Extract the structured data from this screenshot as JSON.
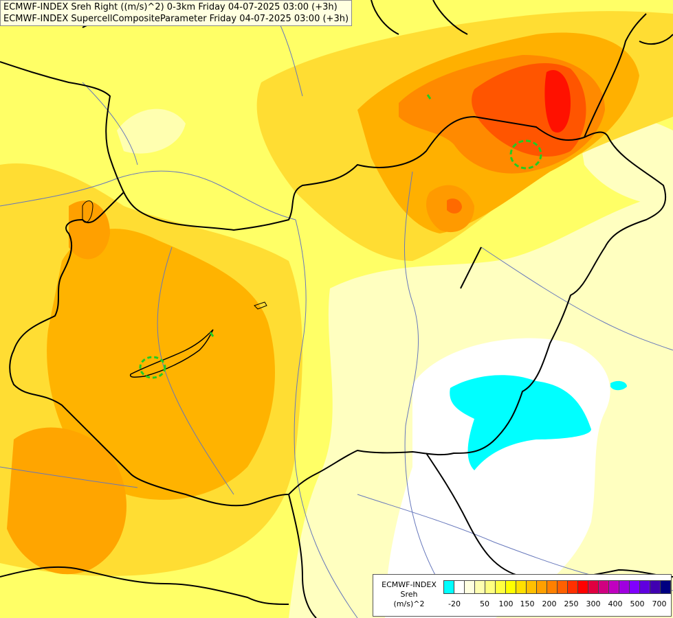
{
  "titles": [
    "ECMWF-INDEX Sreh Right ((m/s)^2) 0-3km Friday 04-07-2025 03:00 (+3h)",
    "ECMWF-INDEX SupercellCompositeParameter Friday 04-07-2025 03:00 (+3h)"
  ],
  "legend": {
    "line1": "ECMWF-INDEX",
    "line2": "Sreh",
    "line3": "(m/s)^2",
    "colors": [
      "#00ffff",
      "#ffffff",
      "#ffffe0",
      "#ffffb0",
      "#ffff80",
      "#ffff40",
      "#ffff00",
      "#ffe000",
      "#ffc000",
      "#ffa000",
      "#ff8000",
      "#ff6000",
      "#ff3000",
      "#ff0000",
      "#e00040",
      "#d00080",
      "#c000c0",
      "#a000e0",
      "#8000ff",
      "#6000e0",
      "#4000b0",
      "#000080"
    ],
    "ticks": [
      "-20",
      "50",
      "100",
      "150",
      "200",
      "250",
      "300",
      "400",
      "500",
      "700"
    ]
  },
  "colors": {
    "base": "#ffff66",
    "light": "#ffffb0",
    "yellow": "#ffff00",
    "gold": "#ffd700",
    "orange": "#ffb000",
    "deep_orange": "#ff8c00",
    "red_orange": "#ff5000",
    "red": "#ff0000",
    "cyan": "#00ffff",
    "white": "#ffffff",
    "border": "#000000",
    "river": "#6677bb",
    "scp_contour": "#22cc22"
  }
}
